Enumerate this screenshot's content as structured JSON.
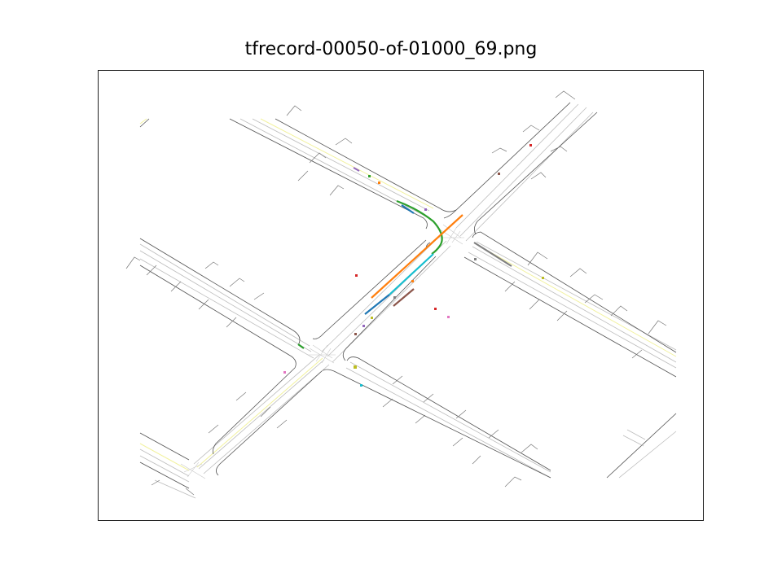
{
  "figure": {
    "title": "tfrecord-00050-of-01000_69.png"
  },
  "colors": {
    "road_edge": "#555555",
    "lane_line": "#bbbbbb",
    "center_line": "#f2f2a0",
    "crosswalk": "#bbbbbb"
  },
  "trajectory_colors": [
    "#2ca02c",
    "#ff7f0e",
    "#17becf",
    "#1f77b4",
    "#8c564b",
    "#7f7f7f"
  ],
  "agent_colors": [
    "#9467bd",
    "#2ca02c",
    "#ff7f0e",
    "#d62728",
    "#e377c2",
    "#bcbd22",
    "#17becf",
    "#7f7f7f",
    "#8c564b"
  ]
}
